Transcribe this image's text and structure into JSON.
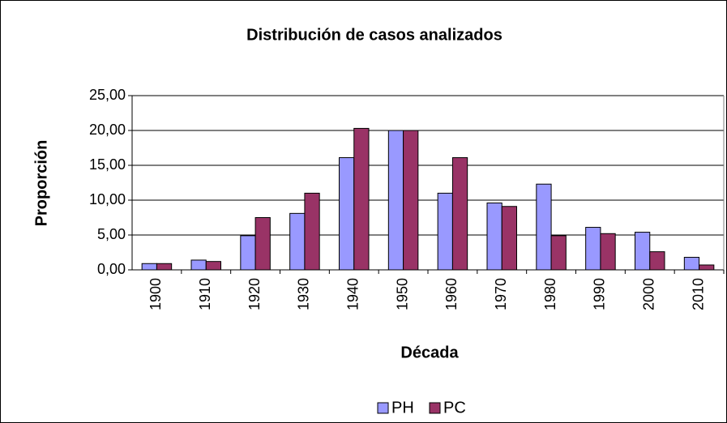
{
  "chart_data": {
    "type": "bar",
    "title": "Distribución de casos analizados",
    "x_label": "Década",
    "y_label": "Proporción",
    "categories": [
      "1900",
      "1910",
      "1920",
      "1930",
      "1940",
      "1950",
      "1960",
      "1970",
      "1980",
      "1990",
      "2000",
      "2010"
    ],
    "series": [
      {
        "name": "PH",
        "color": "#9999ff",
        "values": [
          0.9,
          1.4,
          4.9,
          8.1,
          16.1,
          20.0,
          11.0,
          9.6,
          12.3,
          6.1,
          5.4,
          1.8
        ]
      },
      {
        "name": "PC",
        "color": "#993366",
        "values": [
          0.9,
          1.2,
          7.5,
          11.0,
          20.3,
          20.0,
          16.1,
          9.1,
          4.9,
          5.2,
          2.6,
          0.7
        ]
      }
    ],
    "ylim": [
      0,
      25
    ],
    "yticks": [
      {
        "value": 0,
        "label": "0,00"
      },
      {
        "value": 5,
        "label": "5,00"
      },
      {
        "value": 10,
        "label": "10,00"
      },
      {
        "value": 15,
        "label": "15,00"
      },
      {
        "value": 20,
        "label": "20,00"
      },
      {
        "value": 25,
        "label": "25,00"
      }
    ],
    "grid": true,
    "legend": "bottom"
  }
}
